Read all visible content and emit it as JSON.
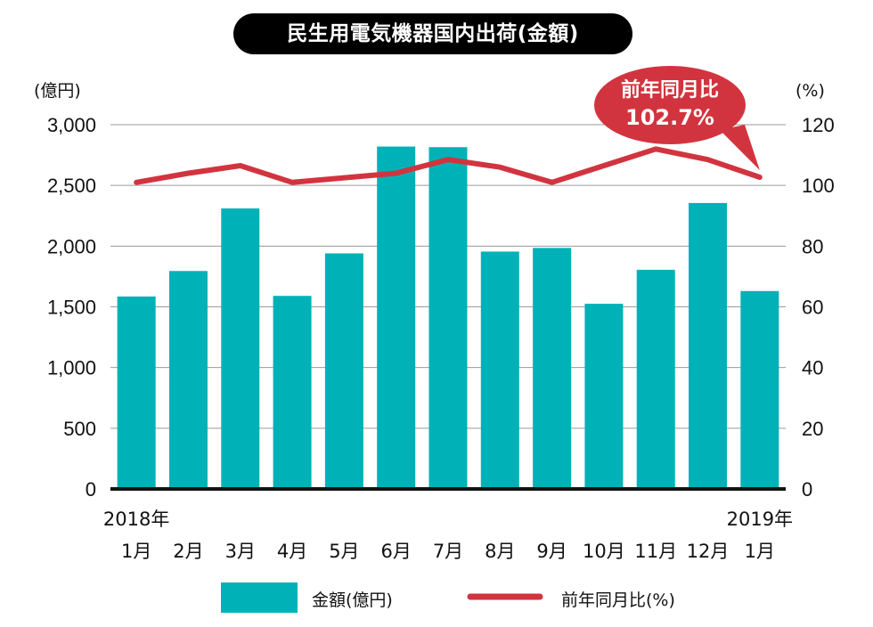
{
  "title": "民生用電気機器国内出荷(金額)",
  "colors": {
    "bar": "#00b2b7",
    "line": "#d2343f",
    "callout": "#d2343f",
    "axis": "#111111"
  },
  "chart_data": {
    "type": "bar",
    "title": "民生用電気機器国内出荷(金額)",
    "xlabel": "",
    "categories": [
      "1月",
      "2月",
      "3月",
      "4月",
      "5月",
      "6月",
      "7月",
      "8月",
      "9月",
      "10月",
      "11月",
      "12月",
      "1月"
    ],
    "year_labels": [
      {
        "index": 0,
        "text": "2018年"
      },
      {
        "index": 12,
        "text": "2019年"
      }
    ],
    "left_axis": {
      "unit": "(億円)",
      "min": 0,
      "max": 3000,
      "ticks": [
        0,
        500,
        1000,
        1500,
        2000,
        2500,
        3000
      ],
      "tick_labels": [
        "0",
        "500",
        "1,000",
        "1,500",
        "2,000",
        "2,500",
        "3,000"
      ]
    },
    "right_axis": {
      "unit": "(%)",
      "min": 0,
      "max": 120,
      "ticks": [
        0,
        20,
        40,
        60,
        80,
        100,
        120
      ],
      "tick_labels": [
        "0",
        "20",
        "40",
        "60",
        "80",
        "100",
        "120"
      ]
    },
    "grid": "horizontal",
    "legend_position": "bottom",
    "series": [
      {
        "name": "金額(億円)",
        "type": "bar",
        "axis": "left",
        "values": [
          1585,
          1795,
          2310,
          1590,
          1940,
          2820,
          2815,
          1955,
          1985,
          1525,
          1805,
          2355,
          1630
        ]
      },
      {
        "name": "前年同月比(%)",
        "type": "line",
        "axis": "right",
        "values": [
          101,
          104,
          106.5,
          101,
          102.5,
          104,
          108.5,
          106,
          101,
          106.5,
          112,
          108.5,
          102.7
        ]
      }
    ],
    "annotation": {
      "text_line1": "前年同月比",
      "text_line2": "102.7%",
      "index": 12
    }
  }
}
